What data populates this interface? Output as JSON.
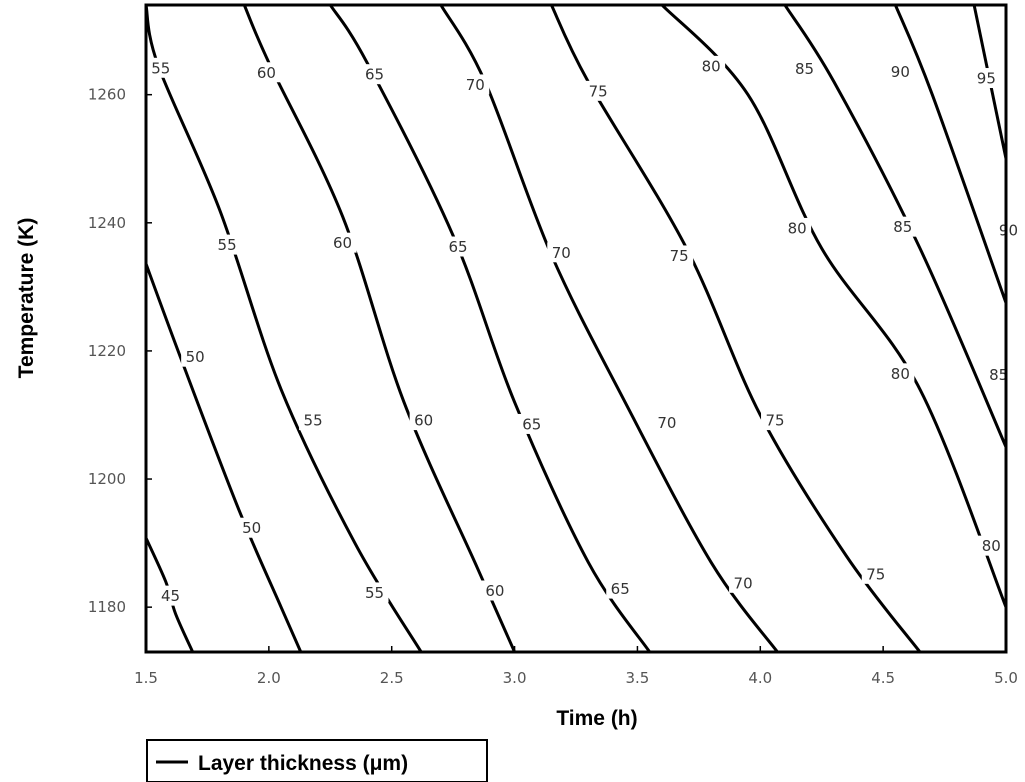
{
  "chart_data": {
    "type": "contour",
    "title": "",
    "xlabel": "Time (h)",
    "ylabel": "Temperature (K)",
    "xlim": [
      1.5,
      5.0
    ],
    "ylim": [
      1173,
      1274
    ],
    "x_ticks": [
      1.5,
      2.0,
      2.5,
      3.0,
      3.5,
      4.0,
      4.5,
      5.0
    ],
    "x_tick_labels": [
      "1.5",
      "2.0",
      "2.5",
      "3.0",
      "3.5",
      "4.0",
      "4.5",
      "5.0"
    ],
    "y_ticks": [
      1180,
      1200,
      1220,
      1240,
      1260
    ],
    "y_tick_labels": [
      "1180",
      "1200",
      "1220",
      "1240",
      "1260"
    ],
    "grid": false,
    "legend": {
      "position": "bottom-left",
      "label": "Layer thickness (μm)"
    },
    "contours": [
      {
        "level": "45",
        "points": [
          [
            1.5,
            1190.8
          ],
          [
            1.58,
            1184
          ],
          [
            1.62,
            1179
          ],
          [
            1.69,
            1173
          ]
        ],
        "labels": [
          {
            "x": 1.6,
            "y": 1181.8
          }
        ]
      },
      {
        "level": "50",
        "points": [
          [
            1.5,
            1233.6
          ],
          [
            1.65,
            1218
          ],
          [
            1.88,
            1195
          ],
          [
            2.05,
            1180
          ],
          [
            2.13,
            1173
          ]
        ],
        "labels": [
          {
            "x": 1.7,
            "y": 1219.1
          },
          {
            "x": 1.93,
            "y": 1192.4
          }
        ]
      },
      {
        "level": "55",
        "points": [
          [
            1.5,
            1274
          ],
          [
            1.55,
            1264.5
          ],
          [
            1.8,
            1242
          ],
          [
            2.05,
            1214
          ],
          [
            2.35,
            1190
          ],
          [
            2.62,
            1173
          ]
        ],
        "labels": [
          {
            "x": 1.56,
            "y": 1264.2
          },
          {
            "x": 1.83,
            "y": 1236.6
          },
          {
            "x": 2.18,
            "y": 1209.2
          },
          {
            "x": 2.43,
            "y": 1182.3
          }
        ]
      },
      {
        "level": "60",
        "points": [
          [
            1.9,
            1274
          ],
          [
            2.0,
            1265
          ],
          [
            2.3,
            1241
          ],
          [
            2.55,
            1212
          ],
          [
            2.85,
            1186
          ],
          [
            3.0,
            1173
          ]
        ],
        "labels": [
          {
            "x": 1.99,
            "y": 1263.5
          },
          {
            "x": 2.3,
            "y": 1236.9
          },
          {
            "x": 2.63,
            "y": 1209.2
          },
          {
            "x": 2.92,
            "y": 1182.6
          }
        ]
      },
      {
        "level": "65",
        "points": [
          [
            2.25,
            1274
          ],
          [
            2.4,
            1265
          ],
          [
            2.75,
            1238
          ],
          [
            3.0,
            1212
          ],
          [
            3.3,
            1187
          ],
          [
            3.55,
            1173
          ]
        ],
        "labels": [
          {
            "x": 2.43,
            "y": 1263.2
          },
          {
            "x": 2.77,
            "y": 1236.3
          },
          {
            "x": 3.07,
            "y": 1208.6
          },
          {
            "x": 3.43,
            "y": 1182.9
          }
        ]
      },
      {
        "level": "70",
        "points": [
          [
            2.7,
            1274
          ],
          [
            2.88,
            1262
          ],
          [
            3.15,
            1235
          ],
          [
            3.45,
            1212
          ],
          [
            3.8,
            1187
          ],
          [
            4.07,
            1173
          ]
        ],
        "labels": [
          {
            "x": 2.84,
            "y": 1261.6
          },
          {
            "x": 3.19,
            "y": 1235.4
          },
          {
            "x": 3.62,
            "y": 1208.8
          },
          {
            "x": 3.93,
            "y": 1183.8
          }
        ]
      },
      {
        "level": "75",
        "points": [
          [
            3.15,
            1274
          ],
          [
            3.3,
            1262
          ],
          [
            3.7,
            1236
          ],
          [
            4.0,
            1210
          ],
          [
            4.35,
            1188
          ],
          [
            4.65,
            1173
          ]
        ],
        "labels": [
          {
            "x": 3.34,
            "y": 1260.6
          },
          {
            "x": 3.67,
            "y": 1234.9
          },
          {
            "x": 4.06,
            "y": 1209.2
          },
          {
            "x": 4.47,
            "y": 1185.2
          }
        ]
      },
      {
        "level": "80",
        "points": [
          [
            3.6,
            1274
          ],
          [
            3.95,
            1260
          ],
          [
            4.25,
            1236
          ],
          [
            4.65,
            1214
          ],
          [
            5.0,
            1180
          ]
        ],
        "labels": [
          {
            "x": 3.8,
            "y": 1264.5
          },
          {
            "x": 4.15,
            "y": 1239.2
          },
          {
            "x": 4.57,
            "y": 1216.5
          },
          {
            "x": 4.94,
            "y": 1189.6
          }
        ]
      },
      {
        "level": "85",
        "points": [
          [
            4.1,
            1274
          ],
          [
            4.3,
            1262
          ],
          [
            4.65,
            1236
          ],
          [
            5.0,
            1205
          ]
        ],
        "labels": [
          {
            "x": 4.18,
            "y": 1264.1
          },
          {
            "x": 4.58,
            "y": 1239.4
          },
          {
            "x": 4.97,
            "y": 1216.3
          }
        ]
      },
      {
        "level": "90",
        "points": [
          [
            4.55,
            1274
          ],
          [
            4.7,
            1260
          ],
          [
            5.0,
            1227.5
          ]
        ],
        "labels": [
          {
            "x": 4.57,
            "y": 1263.6
          },
          {
            "x": 5.01,
            "y": 1238.9
          }
        ]
      },
      {
        "level": "95",
        "points": [
          [
            4.87,
            1274
          ],
          [
            5.0,
            1250
          ]
        ],
        "labels": [
          {
            "x": 4.92,
            "y": 1262.6
          }
        ]
      }
    ]
  }
}
